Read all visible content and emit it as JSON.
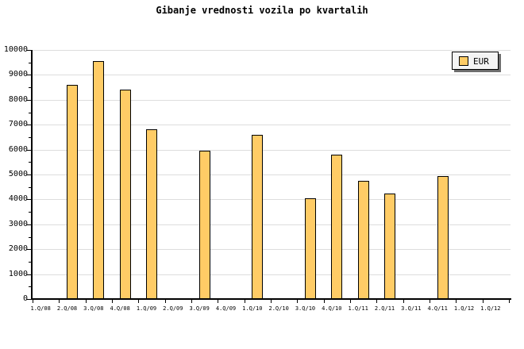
{
  "chart_data": {
    "type": "bar",
    "title": "Gibanje vrednosti vozila po kvartalih",
    "xlabel": "",
    "ylabel": "",
    "categories": [
      "1.Q/08",
      "2.Q/08",
      "3.Q/08",
      "4.Q/08",
      "1.Q/09",
      "2.Q/09",
      "3.Q/09",
      "4.Q/09",
      "1.Q/10",
      "2.Q/10",
      "3.Q/10",
      "4.Q/10",
      "1.Q/11",
      "2.Q/11",
      "3.Q/11",
      "4.Q/11",
      "1.Q/12",
      "1.Q/12"
    ],
    "series": [
      {
        "name": "EUR",
        "values": [
          null,
          8600,
          9550,
          8400,
          6800,
          null,
          5950,
          null,
          6600,
          null,
          4050,
          5800,
          4750,
          4250,
          null,
          4950,
          null,
          null
        ]
      }
    ],
    "ylim": [
      0,
      10000
    ],
    "ytick_major": 1000,
    "ytick_minor": 500,
    "grid": true,
    "legend_position": "top-right",
    "colors": {
      "bar_fill": "#FFCC66",
      "bar_border": "#000000",
      "grid": "#DDDDDD",
      "axis": "#000000",
      "text": "#000000",
      "legend_bg": "#F4F4F4",
      "legend_border": "#000000",
      "legend_shadow": "#6E6E6E",
      "background": "#FFFFFF"
    }
  }
}
